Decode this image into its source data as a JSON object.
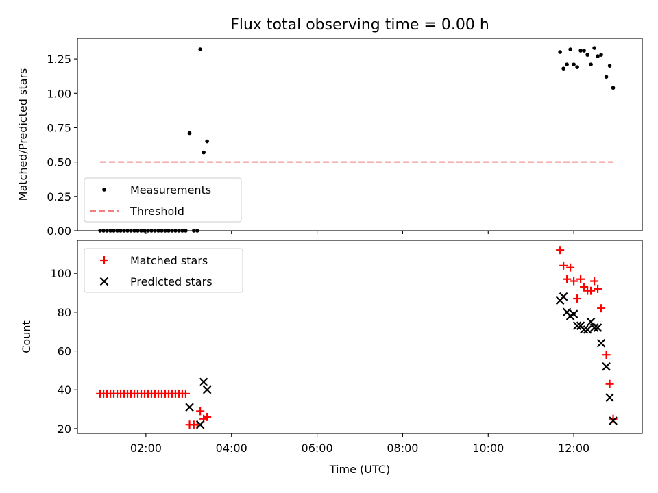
{
  "figure_title": "Flux total observing time = 0.00 h",
  "colors": {
    "matched": "#ff0000",
    "predicted": "#000000",
    "threshold": "#f08080",
    "measurement": "#000000"
  },
  "chart_data": [
    {
      "type": "scatter",
      "title": "Flux total observing time = 0.00 h",
      "xlabel": "",
      "ylabel": "Matched/Predicted stars",
      "xlim": [
        0.4,
        13.6
      ],
      "ylim": [
        0,
        1.4
      ],
      "yticks": [
        0,
        0.25,
        0.5,
        0.75,
        1.0,
        1.25
      ],
      "ytick_labels": [
        "0.00",
        "0.25",
        "0.50",
        "0.75",
        "1.00",
        "1.25"
      ],
      "grid": false,
      "legend_position": "lower-left",
      "legend": [
        {
          "label": "Measurements",
          "kind": "dot"
        },
        {
          "label": "Threshold",
          "kind": "dashed-line"
        }
      ],
      "series": [
        {
          "name": "Measurements",
          "points": [
            [
              0.93,
              0
            ],
            [
              1.01,
              0
            ],
            [
              1.09,
              0
            ],
            [
              1.17,
              0
            ],
            [
              1.25,
              0
            ],
            [
              1.33,
              0
            ],
            [
              1.41,
              0
            ],
            [
              1.49,
              0
            ],
            [
              1.57,
              0
            ],
            [
              1.65,
              0
            ],
            [
              1.73,
              0
            ],
            [
              1.81,
              0
            ],
            [
              1.89,
              0
            ],
            [
              1.97,
              0
            ],
            [
              2.05,
              0
            ],
            [
              2.13,
              0
            ],
            [
              2.21,
              0
            ],
            [
              2.29,
              0
            ],
            [
              2.37,
              0
            ],
            [
              2.45,
              0
            ],
            [
              2.53,
              0
            ],
            [
              2.61,
              0
            ],
            [
              2.69,
              0
            ],
            [
              2.77,
              0
            ],
            [
              2.85,
              0
            ],
            [
              2.93,
              0
            ],
            [
              3.02,
              0.71
            ],
            [
              3.12,
              0
            ],
            [
              3.2,
              0
            ],
            [
              3.27,
              1.32
            ],
            [
              3.35,
              0.57
            ],
            [
              3.43,
              0.65
            ],
            [
              11.68,
              1.3
            ],
            [
              11.76,
              1.18
            ],
            [
              11.84,
              1.21
            ],
            [
              11.92,
              1.32
            ],
            [
              12.0,
              1.21
            ],
            [
              12.08,
              1.19
            ],
            [
              12.16,
              1.31
            ],
            [
              12.24,
              1.31
            ],
            [
              12.32,
              1.28
            ],
            [
              12.4,
              1.21
            ],
            [
              12.48,
              1.33
            ],
            [
              12.56,
              1.27
            ],
            [
              12.64,
              1.28
            ],
            [
              12.76,
              1.12
            ],
            [
              12.84,
              1.2
            ],
            [
              12.92,
              1.04
            ]
          ]
        },
        {
          "name": "Threshold",
          "line": [
            [
              0.93,
              0.5
            ],
            [
              12.92,
              0.5
            ]
          ]
        }
      ]
    },
    {
      "type": "scatter",
      "title": "",
      "xlabel": "Time (UTC)",
      "ylabel": "Count",
      "xlim": [
        0.4,
        13.6
      ],
      "ylim": [
        17.5,
        117
      ],
      "xticks": [
        2,
        4,
        6,
        8,
        10,
        12
      ],
      "xtick_labels": [
        "02:00",
        "04:00",
        "06:00",
        "08:00",
        "10:00",
        "12:00"
      ],
      "yticks": [
        20,
        40,
        60,
        80,
        100
      ],
      "ytick_labels": [
        "20",
        "40",
        "60",
        "80",
        "100"
      ],
      "grid": false,
      "legend_position": "upper-left",
      "legend": [
        {
          "label": "Matched stars",
          "kind": "plus"
        },
        {
          "label": "Predicted stars",
          "kind": "x"
        }
      ],
      "series": [
        {
          "name": "Matched stars",
          "points": [
            [
              0.93,
              38
            ],
            [
              1.01,
              38
            ],
            [
              1.09,
              38
            ],
            [
              1.17,
              38
            ],
            [
              1.25,
              38
            ],
            [
              1.33,
              38
            ],
            [
              1.41,
              38
            ],
            [
              1.49,
              38
            ],
            [
              1.57,
              38
            ],
            [
              1.65,
              38
            ],
            [
              1.73,
              38
            ],
            [
              1.81,
              38
            ],
            [
              1.89,
              38
            ],
            [
              1.97,
              38
            ],
            [
              2.05,
              38
            ],
            [
              2.13,
              38
            ],
            [
              2.21,
              38
            ],
            [
              2.29,
              38
            ],
            [
              2.37,
              38
            ],
            [
              2.45,
              38
            ],
            [
              2.53,
              38
            ],
            [
              2.61,
              38
            ],
            [
              2.69,
              38
            ],
            [
              2.77,
              38
            ],
            [
              2.85,
              38
            ],
            [
              2.93,
              38
            ],
            [
              3.02,
              22
            ],
            [
              3.12,
              22
            ],
            [
              3.2,
              22
            ],
            [
              3.27,
              29
            ],
            [
              3.35,
              25
            ],
            [
              3.43,
              26
            ],
            [
              11.68,
              112
            ],
            [
              11.76,
              104
            ],
            [
              11.84,
              97
            ],
            [
              11.92,
              103
            ],
            [
              12.0,
              96
            ],
            [
              12.08,
              87
            ],
            [
              12.16,
              97
            ],
            [
              12.24,
              93
            ],
            [
              12.32,
              91
            ],
            [
              12.4,
              91
            ],
            [
              12.48,
              96
            ],
            [
              12.56,
              92
            ],
            [
              12.64,
              82
            ],
            [
              12.76,
              58
            ],
            [
              12.84,
              43
            ],
            [
              12.92,
              25
            ]
          ]
        },
        {
          "name": "Predicted stars",
          "points": [
            [
              3.02,
              31
            ],
            [
              3.27,
              22
            ],
            [
              3.35,
              44
            ],
            [
              3.43,
              40
            ],
            [
              11.68,
              86
            ],
            [
              11.76,
              88
            ],
            [
              11.84,
              80
            ],
            [
              11.92,
              78
            ],
            [
              12.0,
              79
            ],
            [
              12.08,
              73
            ],
            [
              12.16,
              73
            ],
            [
              12.24,
              71
            ],
            [
              12.32,
              71
            ],
            [
              12.4,
              75
            ],
            [
              12.48,
              72
            ],
            [
              12.56,
              72
            ],
            [
              12.64,
              64
            ],
            [
              12.76,
              52
            ],
            [
              12.84,
              36
            ],
            [
              12.92,
              24
            ]
          ]
        }
      ]
    }
  ]
}
